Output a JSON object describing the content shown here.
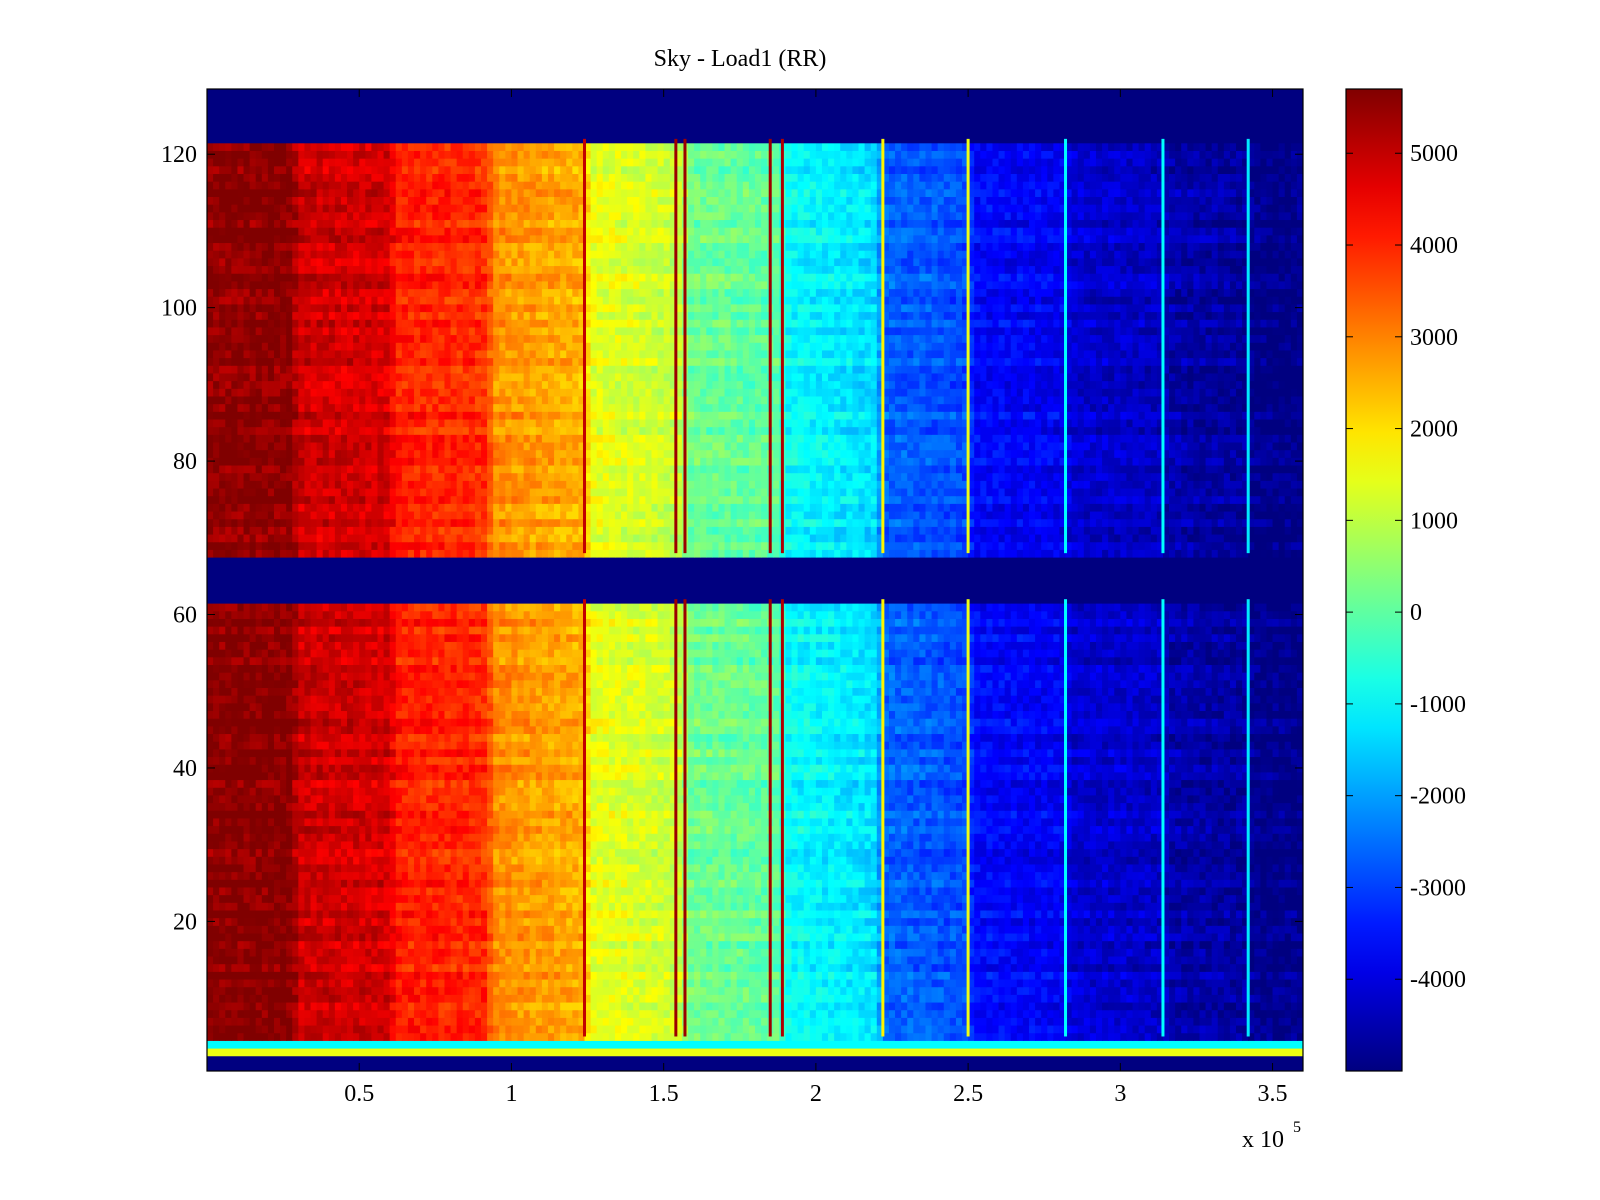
{
  "chart_data": {
    "type": "heatmap",
    "title": "Sky - Load1 (RR)",
    "xlabel": "",
    "ylabel": "",
    "x_multiplier": {
      "base": "x 10",
      "exponent": "5"
    },
    "xlim": [
      0,
      3.6
    ],
    "ylim": [
      0.5,
      128.5
    ],
    "x_ticks": [
      0.5,
      1,
      1.5,
      2,
      2.5,
      3,
      3.5
    ],
    "x_tick_labels": [
      "0.5",
      "1",
      "1.5",
      "2",
      "2.5",
      "3",
      "3.5"
    ],
    "y_ticks": [
      20,
      40,
      60,
      80,
      100,
      120
    ],
    "y_tick_labels": [
      "20",
      "40",
      "60",
      "80",
      "100",
      "120"
    ],
    "colormap": "jet",
    "clim": [
      -5000,
      5700
    ],
    "colorbar_ticks": [
      5000,
      4000,
      3000,
      2000,
      1000,
      0,
      -1000,
      -2000,
      -3000,
      -4000
    ],
    "colorbar_tick_labels": [
      "5000",
      "4000",
      "3000",
      "2000",
      "1000",
      "0",
      "-1000",
      "-2000",
      "-3000",
      "-4000"
    ],
    "value_profile_along_x": {
      "x": [
        0,
        0.28,
        0.3,
        0.6,
        0.62,
        0.92,
        0.94,
        1.24,
        1.26,
        1.56,
        1.58,
        1.88,
        1.9,
        2.2,
        2.22,
        2.5,
        2.52,
        2.82,
        2.84,
        3.14,
        3.16,
        3.42,
        3.44,
        3.6
      ],
      "value": [
        5600,
        5600,
        4900,
        4800,
        4100,
        3900,
        2900,
        2500,
        1500,
        1100,
        200,
        0,
        -900,
        -1300,
        -2600,
        -2900,
        -3600,
        -3800,
        -4100,
        -4300,
        -4500,
        -4700,
        -4900,
        -4900
      ]
    },
    "masked_rows": [
      {
        "y_range": [
          122,
          128.5
        ],
        "value": -5000
      },
      {
        "y_range": [
          62,
          68
        ],
        "value": -5000
      },
      {
        "y_range": [
          0.5,
          3
        ],
        "value": -5000
      }
    ],
    "uniform_rows": [
      {
        "y_range": [
          3,
          4
        ],
        "value": 1500
      },
      {
        "y_range": [
          4,
          5
        ],
        "value": -1000
      }
    ],
    "vertical_lines": [
      {
        "x": 1.24,
        "value": 5000
      },
      {
        "x": 1.54,
        "value": 5400
      },
      {
        "x": 1.57,
        "value": 5400
      },
      {
        "x": 1.85,
        "value": 5400
      },
      {
        "x": 1.89,
        "value": 5200
      },
      {
        "x": 2.22,
        "value": 1800
      },
      {
        "x": 2.5,
        "value": 1500
      },
      {
        "x": 2.82,
        "value": -1000
      },
      {
        "x": 3.14,
        "value": -1000
      },
      {
        "x": 3.42,
        "value": -1200
      }
    ]
  }
}
